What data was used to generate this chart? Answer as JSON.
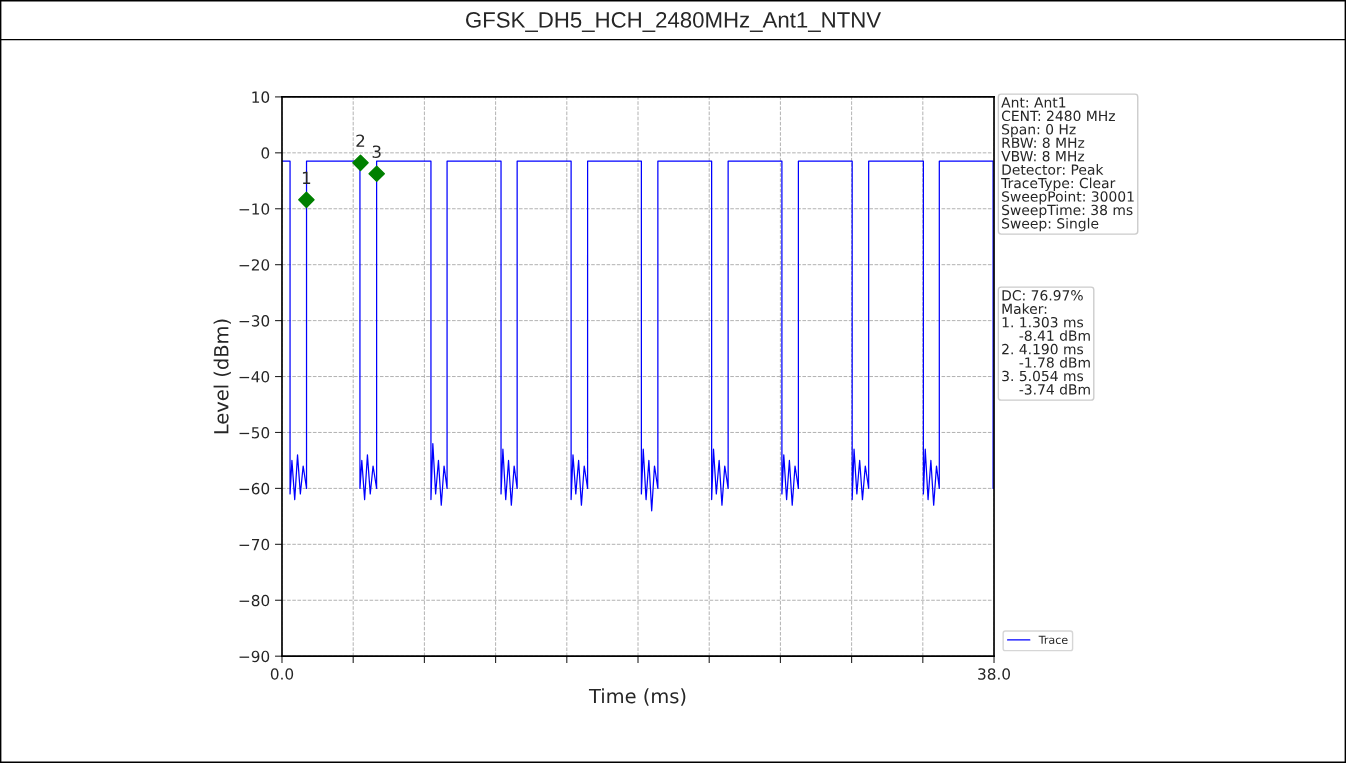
{
  "chart_data": {
    "type": "line",
    "title": "GFSK_DH5_HCH_2480MHz_Ant1_NTNV",
    "xlabel": "Time (ms)",
    "ylabel": "Level (dBm)",
    "xlim": [
      0,
      38
    ],
    "ylim": [
      -90,
      10
    ],
    "xticks": [
      {
        "value": 0,
        "label": "0.0"
      },
      {
        "value": 3.8,
        "label": null
      },
      {
        "value": 7.6,
        "label": null
      },
      {
        "value": 11.4,
        "label": null
      },
      {
        "value": 15.2,
        "label": null
      },
      {
        "value": 19.0,
        "label": null
      },
      {
        "value": 22.8,
        "label": null
      },
      {
        "value": 26.6,
        "label": null
      },
      {
        "value": 30.4,
        "label": null
      },
      {
        "value": 34.2,
        "label": null
      },
      {
        "value": 38,
        "label": "38.0"
      }
    ],
    "yticks": [
      -90,
      -80,
      -70,
      -60,
      -50,
      -40,
      -30,
      -20,
      -10,
      0,
      10
    ],
    "grid": true,
    "legend": "bottom right",
    "series": [
      {
        "name": "Trace",
        "color": "#0000ff",
        "marker": "none",
        "x": [
          0,
          0.43,
          0.43,
          0.53,
          0.68,
          0.83,
          0.98,
          1.13,
          1.31,
          1.31,
          4.16,
          4.16,
          4.26,
          4.41,
          4.56,
          4.71,
          4.86,
          5.05,
          5.05,
          7.95,
          7.95,
          8.05,
          8.2,
          8.35,
          8.5,
          8.65,
          8.81,
          8.81,
          11.69,
          11.69,
          11.79,
          11.94,
          12.09,
          12.24,
          12.39,
          12.55,
          12.55,
          15.43,
          15.43,
          15.53,
          15.68,
          15.83,
          15.98,
          16.13,
          16.31,
          16.31,
          19.18,
          19.18,
          19.28,
          19.43,
          19.58,
          19.73,
          19.88,
          20.06,
          20.06,
          22.93,
          22.93,
          23.03,
          23.18,
          23.33,
          23.48,
          23.63,
          23.81,
          23.81,
          26.68,
          26.68,
          26.78,
          26.93,
          27.08,
          27.23,
          27.38,
          27.56,
          27.56,
          30.43,
          30.43,
          30.53,
          30.68,
          30.83,
          30.98,
          31.13,
          31.31,
          31.31,
          34.23,
          34.23,
          34.33,
          34.48,
          34.63,
          34.78,
          34.93,
          35.08,
          35.08,
          37.95,
          37.95,
          38.0
        ],
        "values": [
          -1.5,
          -1.5,
          -61,
          -55,
          -62,
          -54,
          -61,
          -56,
          -60,
          -1.5,
          -1.5,
          -60,
          -55,
          -62,
          -54,
          -61,
          -56,
          -60,
          -1.5,
          -1.5,
          -62,
          -52,
          -61,
          -55,
          -63,
          -56,
          -60,
          -1.5,
          -1.5,
          -61,
          -53,
          -62,
          -55,
          -63,
          -56,
          -60,
          -1.5,
          -1.5,
          -62,
          -54,
          -61,
          -55,
          -63,
          -56,
          -60,
          -1.5,
          -1.5,
          -61,
          -53,
          -62,
          -55,
          -64,
          -56,
          -60,
          -1.5,
          -1.5,
          -62,
          -53,
          -61,
          -55,
          -63,
          -56,
          -60,
          -1.5,
          -1.5,
          -61,
          -54,
          -62,
          -55,
          -63,
          -56,
          -60,
          -1.5,
          -1.5,
          -62,
          -53,
          -61,
          -55,
          -62,
          -56,
          -60,
          -1.5,
          -1.5,
          -61,
          -53,
          -62,
          -55,
          -63,
          -56,
          -60,
          -1.5,
          -1.5,
          -60,
          -60
        ]
      },
      {
        "type": "scatter",
        "color": "#008000",
        "marker": "diamond",
        "x": [
          1.303,
          4.19,
          5.054
        ],
        "values": [
          -8.41,
          -1.78,
          -3.74
        ]
      }
    ],
    "annotations": [
      {
        "text": "1",
        "x": 1.303,
        "y": -8.41
      },
      {
        "text": "2",
        "x": 4.19,
        "y": -1.78
      },
      {
        "text": "3",
        "x": 5.054,
        "y": -3.74
      },
      "Ant: Ant1\nCENT: 2480 MHz\nSpan: 0 Hz\nRBW: 8 MHz\nVBW: 8 MHz\nDetector: Peak\nTraceType: Clear\nSweepPoint: 30001\nSweepTime: 38 ms\nSweep: Single",
      "DC: 76.97%\nMaker:\n1. 1.303 ms\n    -8.41 dBm\n2. 4.190 ms\n    -1.78 dBm\n3. 5.054 ms\n    -3.74 dBm"
    ]
  }
}
